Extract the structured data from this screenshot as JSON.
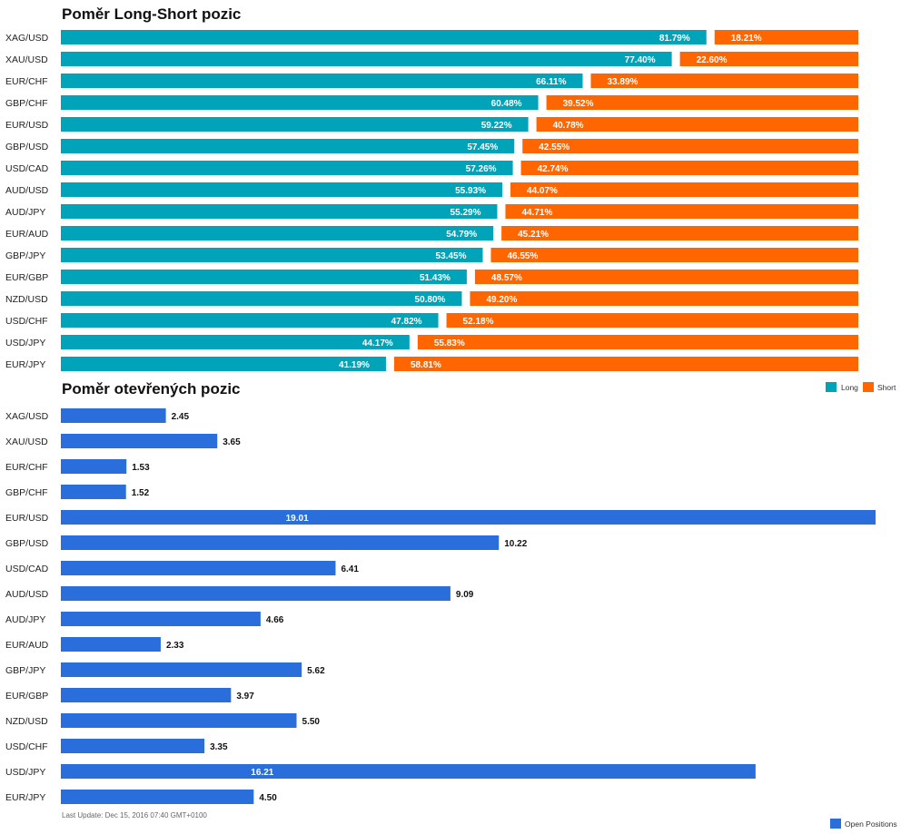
{
  "chart_data": [
    {
      "type": "bar",
      "orientation": "horizontal",
      "stacked": true,
      "title": "Poměr Long-Short pozic",
      "categories": [
        "XAG/USD",
        "XAU/USD",
        "EUR/CHF",
        "GBP/CHF",
        "EUR/USD",
        "GBP/USD",
        "USD/CAD",
        "AUD/USD",
        "AUD/JPY",
        "EUR/AUD",
        "GBP/JPY",
        "EUR/GBP",
        "NZD/USD",
        "USD/CHF",
        "USD/JPY",
        "EUR/JPY"
      ],
      "series": [
        {
          "name": "Long",
          "color": "#00a3b8",
          "values": [
            81.79,
            77.4,
            66.11,
            60.48,
            59.22,
            57.45,
            57.26,
            55.93,
            55.29,
            54.79,
            53.45,
            51.43,
            50.8,
            47.82,
            44.17,
            41.19
          ],
          "labels": [
            "81.79%",
            "77.40%",
            "66.11%",
            "60.48%",
            "59.22%",
            "57.45%",
            "57.26%",
            "55.93%",
            "55.29%",
            "54.79%",
            "53.45%",
            "51.43%",
            "50.80%",
            "47.82%",
            "44.17%",
            "41.19%"
          ]
        },
        {
          "name": "Short",
          "color": "#ff6600",
          "values": [
            18.21,
            22.6,
            33.89,
            39.52,
            40.78,
            42.55,
            42.74,
            44.07,
            44.71,
            45.21,
            46.55,
            48.57,
            49.2,
            52.18,
            55.83,
            58.81
          ],
          "labels": [
            "18.21%",
            "22.60%",
            "33.89%",
            "39.52%",
            "40.78%",
            "42.55%",
            "42.74%",
            "44.07%",
            "44.71%",
            "45.21%",
            "46.55%",
            "48.57%",
            "49.20%",
            "52.18%",
            "55.83%",
            "58.81%"
          ]
        }
      ],
      "xlim": [
        0,
        100
      ],
      "legend": "bottom-right"
    },
    {
      "type": "bar",
      "orientation": "horizontal",
      "title": "Poměr otevřených pozic",
      "categories": [
        "XAG/USD",
        "XAU/USD",
        "EUR/CHF",
        "GBP/CHF",
        "EUR/USD",
        "GBP/USD",
        "USD/CAD",
        "AUD/USD",
        "AUD/JPY",
        "EUR/AUD",
        "GBP/JPY",
        "EUR/GBP",
        "NZD/USD",
        "USD/CHF",
        "USD/JPY",
        "EUR/JPY"
      ],
      "series": [
        {
          "name": "Open Positions",
          "color": "#2a6edb",
          "values": [
            2.45,
            3.65,
            1.53,
            1.52,
            19.01,
            10.22,
            6.41,
            9.09,
            4.66,
            2.33,
            5.62,
            3.97,
            5.5,
            3.35,
            16.21,
            4.5
          ],
          "labels": [
            "2.45",
            "3.65",
            "1.53",
            "1.52",
            "19.01",
            "10.22",
            "6.41",
            "9.09",
            "4.66",
            "2.33",
            "5.62",
            "3.97",
            "5.50",
            "3.35",
            "16.21",
            "4.50"
          ]
        }
      ],
      "xlim": [
        0,
        19.01
      ],
      "legend": "bottom-right"
    }
  ],
  "footer": "Last Update: Dec 15, 2016 07:40 GMT+0100"
}
